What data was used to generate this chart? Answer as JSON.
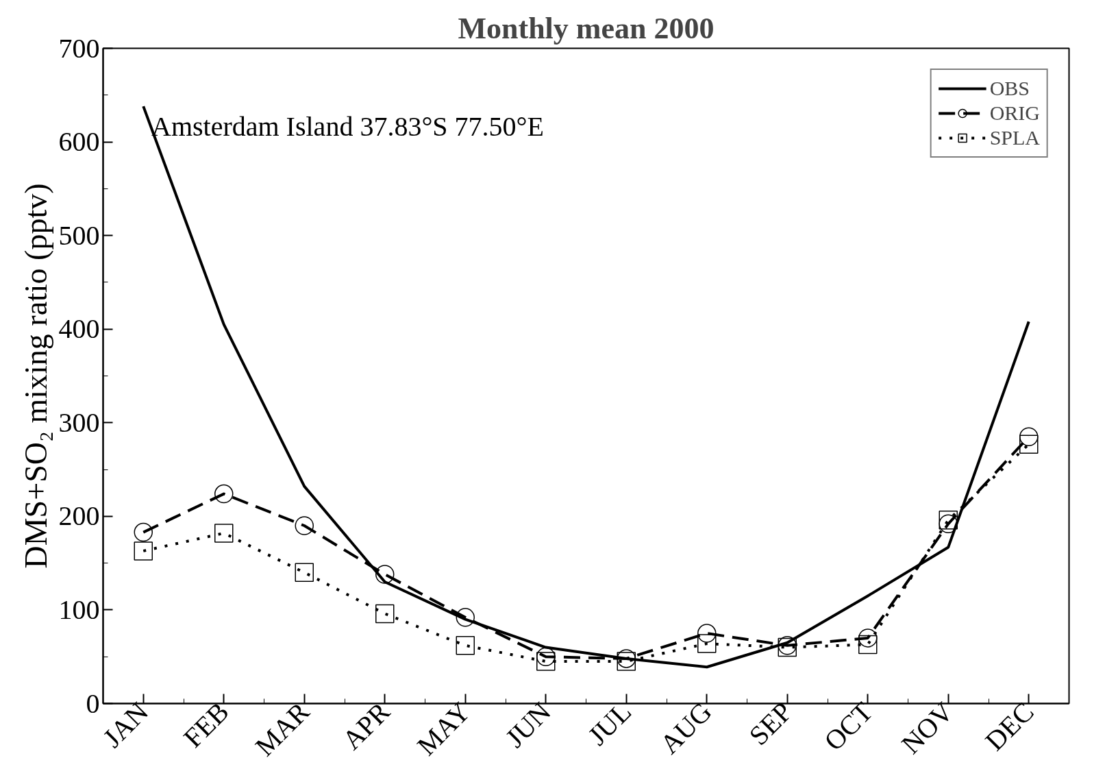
{
  "chart_data": {
    "type": "line",
    "title": "Monthly mean 2000",
    "ylabel": "DMS+SO₂ mixing ratio (pptv)",
    "categories": [
      "JAN",
      "FEB",
      "MAR",
      "APR",
      "MAY",
      "JUN",
      "JUL",
      "AUG",
      "SEP",
      "OCT",
      "NOV",
      "DEC"
    ],
    "ylim": [
      0,
      700
    ],
    "yticks": [
      0,
      100,
      200,
      300,
      400,
      500,
      600,
      700
    ],
    "grid": false,
    "legend": "top right",
    "annotations": [
      "Amsterdam Island 37.83°S 77.50°E"
    ],
    "series": [
      {
        "name": "OBS",
        "color": "#000000",
        "line_style": "solid",
        "marker": "none",
        "values": [
          638,
          405,
          232,
          130,
          90,
          60,
          48,
          39,
          65,
          115,
          167,
          408
        ]
      },
      {
        "name": "ORIG",
        "color": "#000000",
        "line_style": "dashed",
        "marker": "circle",
        "values": [
          183,
          224,
          190,
          138,
          92,
          50,
          48,
          75,
          62,
          70,
          192,
          285
        ]
      },
      {
        "name": "SPLA",
        "color": "#000000",
        "line_style": "dotted",
        "marker": "square",
        "values": [
          163,
          182,
          140,
          96,
          62,
          45,
          45,
          64,
          60,
          63,
          196,
          277
        ]
      }
    ]
  }
}
